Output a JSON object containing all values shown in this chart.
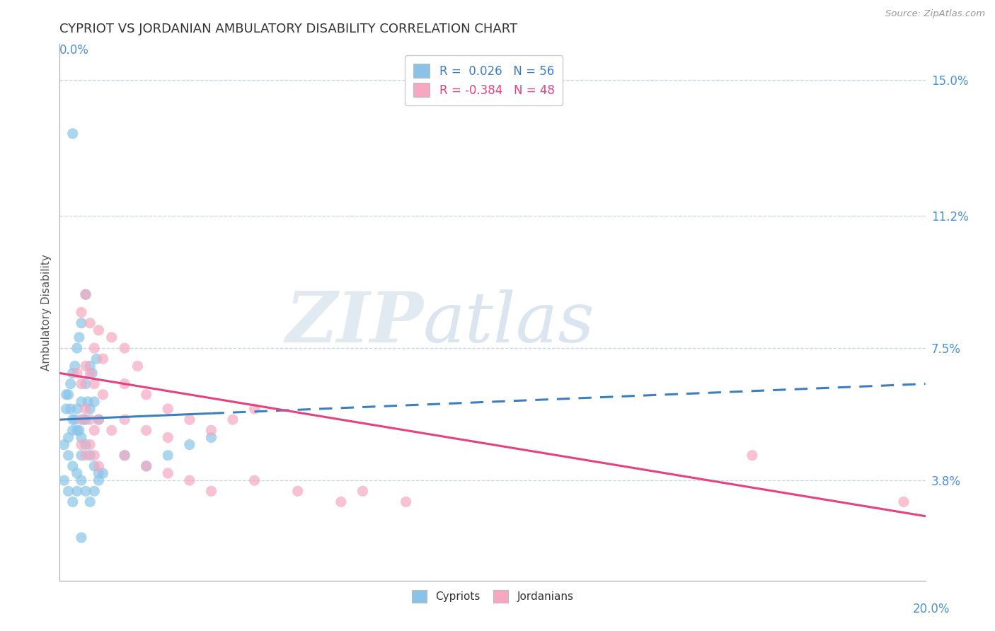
{
  "title": "CYPRIOT VS JORDANIAN AMBULATORY DISABILITY CORRELATION CHART",
  "source": "Source: ZipAtlas.com",
  "ylabel": "Ambulatory Disability",
  "y_ticks_right": [
    3.8,
    7.5,
    11.2,
    15.0
  ],
  "y_ticks_right_labels": [
    "3.8%",
    "7.5%",
    "11.2%",
    "15.0%"
  ],
  "x_min": 0.0,
  "x_max": 20.0,
  "y_min": 1.0,
  "y_max": 16.0,
  "cypriot_color": "#89C4E8",
  "jordanian_color": "#F5A8C0",
  "cypriot_line_color": "#3A7FC1",
  "jordanian_line_color": "#E84080",
  "R_cypriot": 0.026,
  "N_cypriot": 56,
  "R_jordanian": -0.384,
  "N_jordanian": 48,
  "watermark_zip": "ZIP",
  "watermark_atlas": "atlas",
  "background_color": "#ffffff",
  "grid_color": "#c8d4e8",
  "cypriot_scatter": [
    [
      0.2,
      6.2
    ],
    [
      0.3,
      6.8
    ],
    [
      0.4,
      7.5
    ],
    [
      0.5,
      8.2
    ],
    [
      0.6,
      9.0
    ],
    [
      0.15,
      5.8
    ],
    [
      0.25,
      6.5
    ],
    [
      0.35,
      7.0
    ],
    [
      0.45,
      7.8
    ],
    [
      0.55,
      5.5
    ],
    [
      0.65,
      6.0
    ],
    [
      0.75,
      6.8
    ],
    [
      0.85,
      7.2
    ],
    [
      0.3,
      5.2
    ],
    [
      0.4,
      5.8
    ],
    [
      0.5,
      6.0
    ],
    [
      0.6,
      6.5
    ],
    [
      0.7,
      7.0
    ],
    [
      0.2,
      5.0
    ],
    [
      0.3,
      5.5
    ],
    [
      0.4,
      5.2
    ],
    [
      0.5,
      5.0
    ],
    [
      0.6,
      5.5
    ],
    [
      0.7,
      5.8
    ],
    [
      0.8,
      6.0
    ],
    [
      0.9,
      5.5
    ],
    [
      0.15,
      6.2
    ],
    [
      0.25,
      5.8
    ],
    [
      0.35,
      5.5
    ],
    [
      0.45,
      5.2
    ],
    [
      0.1,
      4.8
    ],
    [
      0.2,
      4.5
    ],
    [
      0.3,
      4.2
    ],
    [
      0.4,
      4.0
    ],
    [
      0.5,
      4.5
    ],
    [
      0.6,
      4.8
    ],
    [
      0.7,
      4.5
    ],
    [
      0.8,
      4.2
    ],
    [
      0.9,
      4.0
    ],
    [
      0.1,
      3.8
    ],
    [
      0.2,
      3.5
    ],
    [
      0.3,
      3.2
    ],
    [
      0.4,
      3.5
    ],
    [
      0.5,
      3.8
    ],
    [
      0.6,
      3.5
    ],
    [
      0.7,
      3.2
    ],
    [
      0.8,
      3.5
    ],
    [
      0.9,
      3.8
    ],
    [
      1.0,
      4.0
    ],
    [
      1.5,
      4.5
    ],
    [
      2.0,
      4.2
    ],
    [
      2.5,
      4.5
    ],
    [
      3.0,
      4.8
    ],
    [
      3.5,
      5.0
    ],
    [
      0.3,
      13.5
    ],
    [
      0.5,
      2.2
    ]
  ],
  "jordanian_scatter": [
    [
      0.5,
      8.5
    ],
    [
      0.6,
      9.0
    ],
    [
      0.7,
      8.2
    ],
    [
      0.8,
      7.5
    ],
    [
      0.9,
      8.0
    ],
    [
      1.0,
      7.2
    ],
    [
      1.2,
      7.8
    ],
    [
      1.5,
      7.5
    ],
    [
      1.8,
      7.0
    ],
    [
      0.4,
      6.8
    ],
    [
      0.5,
      6.5
    ],
    [
      0.6,
      7.0
    ],
    [
      0.7,
      6.8
    ],
    [
      0.8,
      6.5
    ],
    [
      1.0,
      6.2
    ],
    [
      1.5,
      6.5
    ],
    [
      2.0,
      6.2
    ],
    [
      2.5,
      5.8
    ],
    [
      0.5,
      5.5
    ],
    [
      0.6,
      5.8
    ],
    [
      0.7,
      5.5
    ],
    [
      0.8,
      5.2
    ],
    [
      0.9,
      5.5
    ],
    [
      1.2,
      5.2
    ],
    [
      1.5,
      5.5
    ],
    [
      2.0,
      5.2
    ],
    [
      2.5,
      5.0
    ],
    [
      3.0,
      5.5
    ],
    [
      3.5,
      5.2
    ],
    [
      4.0,
      5.5
    ],
    [
      4.5,
      5.8
    ],
    [
      0.5,
      4.8
    ],
    [
      0.6,
      4.5
    ],
    [
      0.7,
      4.8
    ],
    [
      0.8,
      4.5
    ],
    [
      0.9,
      4.2
    ],
    [
      1.5,
      4.5
    ],
    [
      2.0,
      4.2
    ],
    [
      2.5,
      4.0
    ],
    [
      3.0,
      3.8
    ],
    [
      3.5,
      3.5
    ],
    [
      4.5,
      3.8
    ],
    [
      5.5,
      3.5
    ],
    [
      6.5,
      3.2
    ],
    [
      7.0,
      3.5
    ],
    [
      8.0,
      3.2
    ],
    [
      16.0,
      4.5
    ],
    [
      19.5,
      3.2
    ]
  ],
  "cy_trend_start_x": 0.0,
  "cy_trend_end_x": 20.0,
  "cy_trend_start_y": 5.5,
  "cy_trend_end_y": 6.5,
  "jo_trend_start_x": 0.0,
  "jo_trend_end_x": 20.0,
  "jo_trend_start_y": 6.8,
  "jo_trend_end_y": 2.8
}
